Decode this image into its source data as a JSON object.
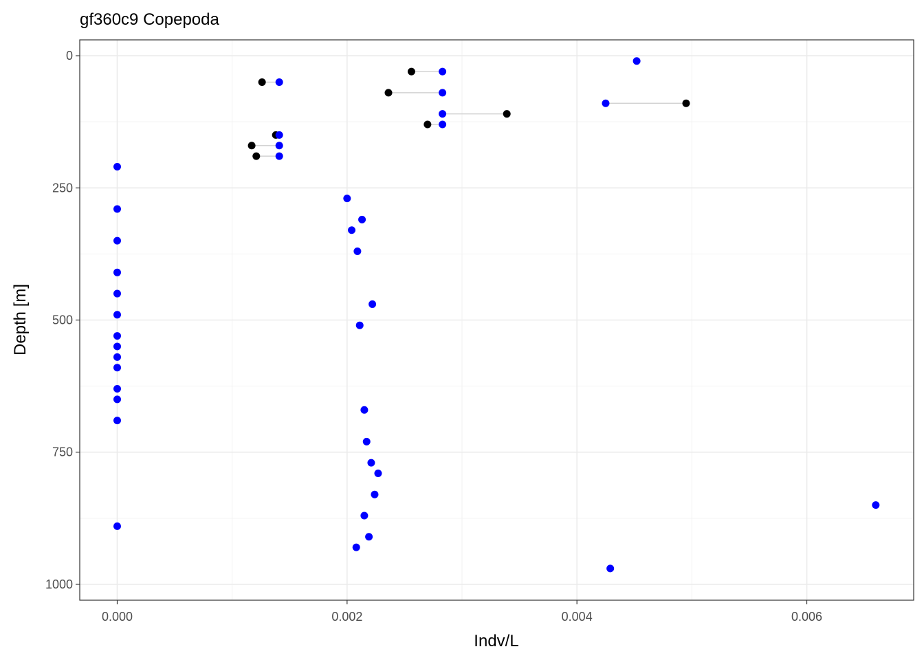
{
  "chart_data": {
    "type": "scatter",
    "title": "gf360c9 Copepoda",
    "xlabel": "Indv/L",
    "ylabel": "Depth [m]",
    "xlim": [
      -0.000326,
      0.00693
    ],
    "ylim": [
      1030,
      -30
    ],
    "y_reversed": true,
    "grid": true,
    "legend": "none",
    "x_ticks": [
      0.0,
      0.002,
      0.004,
      0.006
    ],
    "x_tick_labels": [
      "0.000",
      "0.002",
      "0.004",
      "0.006"
    ],
    "x_minor_ticks": [
      0.001,
      0.003,
      0.005
    ],
    "y_ticks": [
      0,
      250,
      500,
      750,
      1000
    ],
    "y_tick_labels": [
      "0",
      "250",
      "500",
      "750",
      "1000"
    ],
    "y_minor_ticks": [
      125,
      375,
      625,
      875
    ],
    "colors": {
      "series_a": "#000000",
      "series_b": "#0000ff",
      "segment": "#d3d3d3"
    },
    "segments": [
      {
        "depth": 30,
        "x_from": 0.00256,
        "x_to": 0.00283
      },
      {
        "depth": 50,
        "x_from": 0.00126,
        "x_to": 0.00141
      },
      {
        "depth": 70,
        "x_from": 0.00236,
        "x_to": 0.00283
      },
      {
        "depth": 90,
        "x_from": 0.00425,
        "x_to": 0.00495
      },
      {
        "depth": 110,
        "x_from": 0.00283,
        "x_to": 0.00339
      },
      {
        "depth": 130,
        "x_from": 0.0027,
        "x_to": 0.00283
      },
      {
        "depth": 150,
        "x_from": 0.00138,
        "x_to": 0.00141
      },
      {
        "depth": 170,
        "x_from": 0.00117,
        "x_to": 0.00141
      },
      {
        "depth": 190,
        "x_from": 0.00121,
        "x_to": 0.00141
      }
    ],
    "series": [
      {
        "color": "#000000",
        "points": [
          {
            "x": 0.00256,
            "y": 30
          },
          {
            "x": 0.00126,
            "y": 50
          },
          {
            "x": 0.00236,
            "y": 70
          },
          {
            "x": 0.00495,
            "y": 90
          },
          {
            "x": 0.00339,
            "y": 110
          },
          {
            "x": 0.0027,
            "y": 130
          },
          {
            "x": 0.00138,
            "y": 150
          },
          {
            "x": 0.00117,
            "y": 170
          },
          {
            "x": 0.00121,
            "y": 190
          }
        ]
      },
      {
        "color": "#0000ff",
        "points": [
          {
            "x": 0.00452,
            "y": 10
          },
          {
            "x": 0.00283,
            "y": 30
          },
          {
            "x": 0.00141,
            "y": 50
          },
          {
            "x": 0.00283,
            "y": 70
          },
          {
            "x": 0.00425,
            "y": 90
          },
          {
            "x": 0.00283,
            "y": 110
          },
          {
            "x": 0.00283,
            "y": 130
          },
          {
            "x": 0.00141,
            "y": 150
          },
          {
            "x": 0.00141,
            "y": 170
          },
          {
            "x": 0.00141,
            "y": 190
          },
          {
            "x": 0.0,
            "y": 210
          },
          {
            "x": 0.002,
            "y": 270
          },
          {
            "x": 0.0,
            "y": 290
          },
          {
            "x": 0.00213,
            "y": 310
          },
          {
            "x": 0.00204,
            "y": 330
          },
          {
            "x": 0.0,
            "y": 350
          },
          {
            "x": 0.00209,
            "y": 370
          },
          {
            "x": 0.0,
            "y": 410
          },
          {
            "x": 0.0,
            "y": 450
          },
          {
            "x": 0.00222,
            "y": 470
          },
          {
            "x": 0.0,
            "y": 490
          },
          {
            "x": 0.00211,
            "y": 510
          },
          {
            "x": 0.0,
            "y": 530
          },
          {
            "x": 0.0,
            "y": 550
          },
          {
            "x": 0.0,
            "y": 570
          },
          {
            "x": 0.0,
            "y": 590
          },
          {
            "x": 0.0,
            "y": 630
          },
          {
            "x": 0.0,
            "y": 650
          },
          {
            "x": 0.00215,
            "y": 670
          },
          {
            "x": 0.0,
            "y": 690
          },
          {
            "x": 0.00217,
            "y": 730
          },
          {
            "x": 0.00221,
            "y": 770
          },
          {
            "x": 0.00227,
            "y": 790
          },
          {
            "x": 0.00224,
            "y": 830
          },
          {
            "x": 0.00215,
            "y": 870
          },
          {
            "x": 0.0066,
            "y": 850
          },
          {
            "x": 0.0,
            "y": 890
          },
          {
            "x": 0.00219,
            "y": 910
          },
          {
            "x": 0.00208,
            "y": 930
          },
          {
            "x": 0.00429,
            "y": 970
          }
        ]
      }
    ]
  }
}
